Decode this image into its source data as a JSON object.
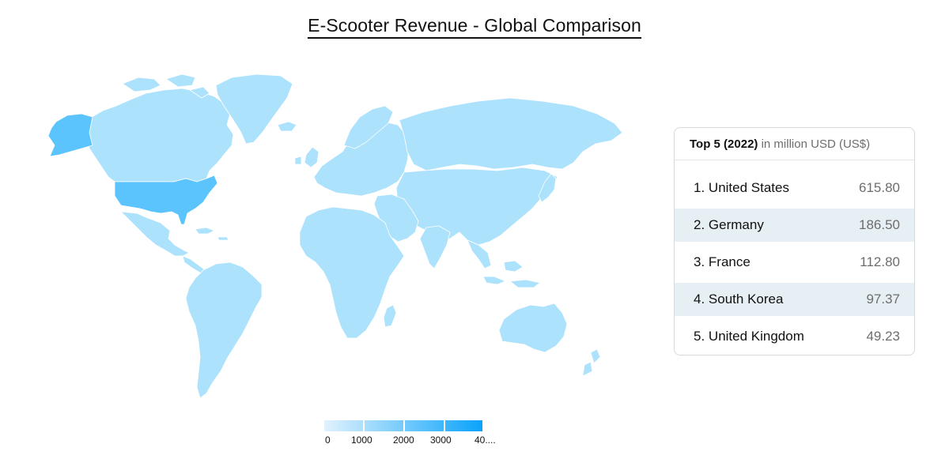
{
  "title": "E-Scooter Revenue - Global Comparison",
  "panel": {
    "heading_bold": "Top 5 (2022)",
    "heading_unit": "in million USD (US$)",
    "rows": [
      {
        "rank": "1.",
        "country": "United States",
        "value": "615.80"
      },
      {
        "rank": "2.",
        "country": "Germany",
        "value": "186.50"
      },
      {
        "rank": "3.",
        "country": "France",
        "value": "112.80"
      },
      {
        "rank": "4.",
        "country": "South Korea",
        "value": "97.37"
      },
      {
        "rank": "5.",
        "country": "United Kingdom",
        "value": "49.23"
      }
    ]
  },
  "legend": {
    "labels": [
      "0",
      "1000",
      "2000",
      "3000",
      "40...."
    ],
    "colors": [
      "#e1f2fd",
      "#0aa3fb"
    ]
  },
  "map": {
    "base_color": "#ade2fd",
    "highlight_color": "#5cc4fd",
    "highlighted": [
      "United States"
    ]
  }
}
